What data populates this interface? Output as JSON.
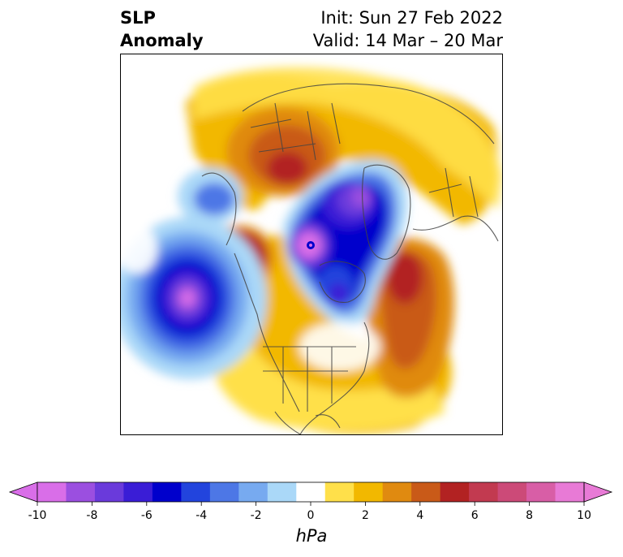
{
  "header": {
    "title_line1": "SLP",
    "title_line2": "Anomaly",
    "init": "Init: Sun 27 Feb 2022",
    "valid": "Valid: 14 Mar – 20 Mar"
  },
  "colorbar": {
    "unit": "hPa",
    "levels": [
      -10,
      -9,
      -8,
      -7,
      -6,
      -5,
      -4,
      -3,
      -2,
      -1,
      1,
      2,
      3,
      4,
      5,
      6,
      7,
      8,
      9,
      10
    ],
    "colors": [
      "#d96ee8",
      "#9b4fe0",
      "#6a3adb",
      "#3a1dd6",
      "#0000cc",
      "#2244dd",
      "#4d77e6",
      "#77aaf0",
      "#aad8f8",
      "#ffffff",
      "#ffe04a",
      "#f2b800",
      "#e08a10",
      "#c95a18",
      "#b22222",
      "#c23a50",
      "#cc4a78",
      "#d85ea6",
      "#e87ad6"
    ],
    "over_color": "#e87ad6",
    "under_color": "#d96ee8",
    "tick_labels": [
      "-10",
      "-8",
      "-6",
      "-4",
      "-2",
      "0",
      "2",
      "4",
      "6",
      "8",
      "10"
    ]
  }
}
